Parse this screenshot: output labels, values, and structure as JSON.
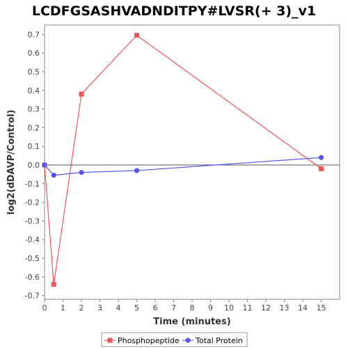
{
  "chart_data": {
    "type": "line",
    "title": "LCDFGSASHVADNDITPY#LVSR(+ 3)_v1",
    "xlabel": "Time (minutes)",
    "ylabel": "log2(dDAVP/Control)",
    "xlim": [
      0,
      16
    ],
    "ylim": [
      -0.72,
      0.75
    ],
    "x_ticks": [
      "0",
      "1",
      "2",
      "3",
      "4",
      "5",
      "6",
      "7",
      "8",
      "9",
      "10",
      "11",
      "12",
      "13",
      "14",
      "15"
    ],
    "y_ticks": [
      "0.7",
      "0.6",
      "0.5",
      "0.4",
      "0.3",
      "0.2",
      "0.1",
      "0.0",
      "-0.1",
      "-0.2",
      "-0.3",
      "-0.4",
      "-0.5",
      "-0.6",
      "-0.7"
    ],
    "grid": false,
    "legend_position": "bottom",
    "series": [
      {
        "name": "Phosphopeptide",
        "color": "#ee5555",
        "marker": "square",
        "x": [
          0,
          0.5,
          2,
          5,
          15
        ],
        "y": [
          0.0,
          -0.64,
          0.38,
          0.695,
          -0.02
        ]
      },
      {
        "name": "Total Protein",
        "color": "#5555ee",
        "marker": "circle",
        "x": [
          0,
          0.5,
          2,
          5,
          15
        ],
        "y": [
          0.0,
          -0.055,
          -0.04,
          -0.03,
          0.04
        ]
      }
    ]
  }
}
